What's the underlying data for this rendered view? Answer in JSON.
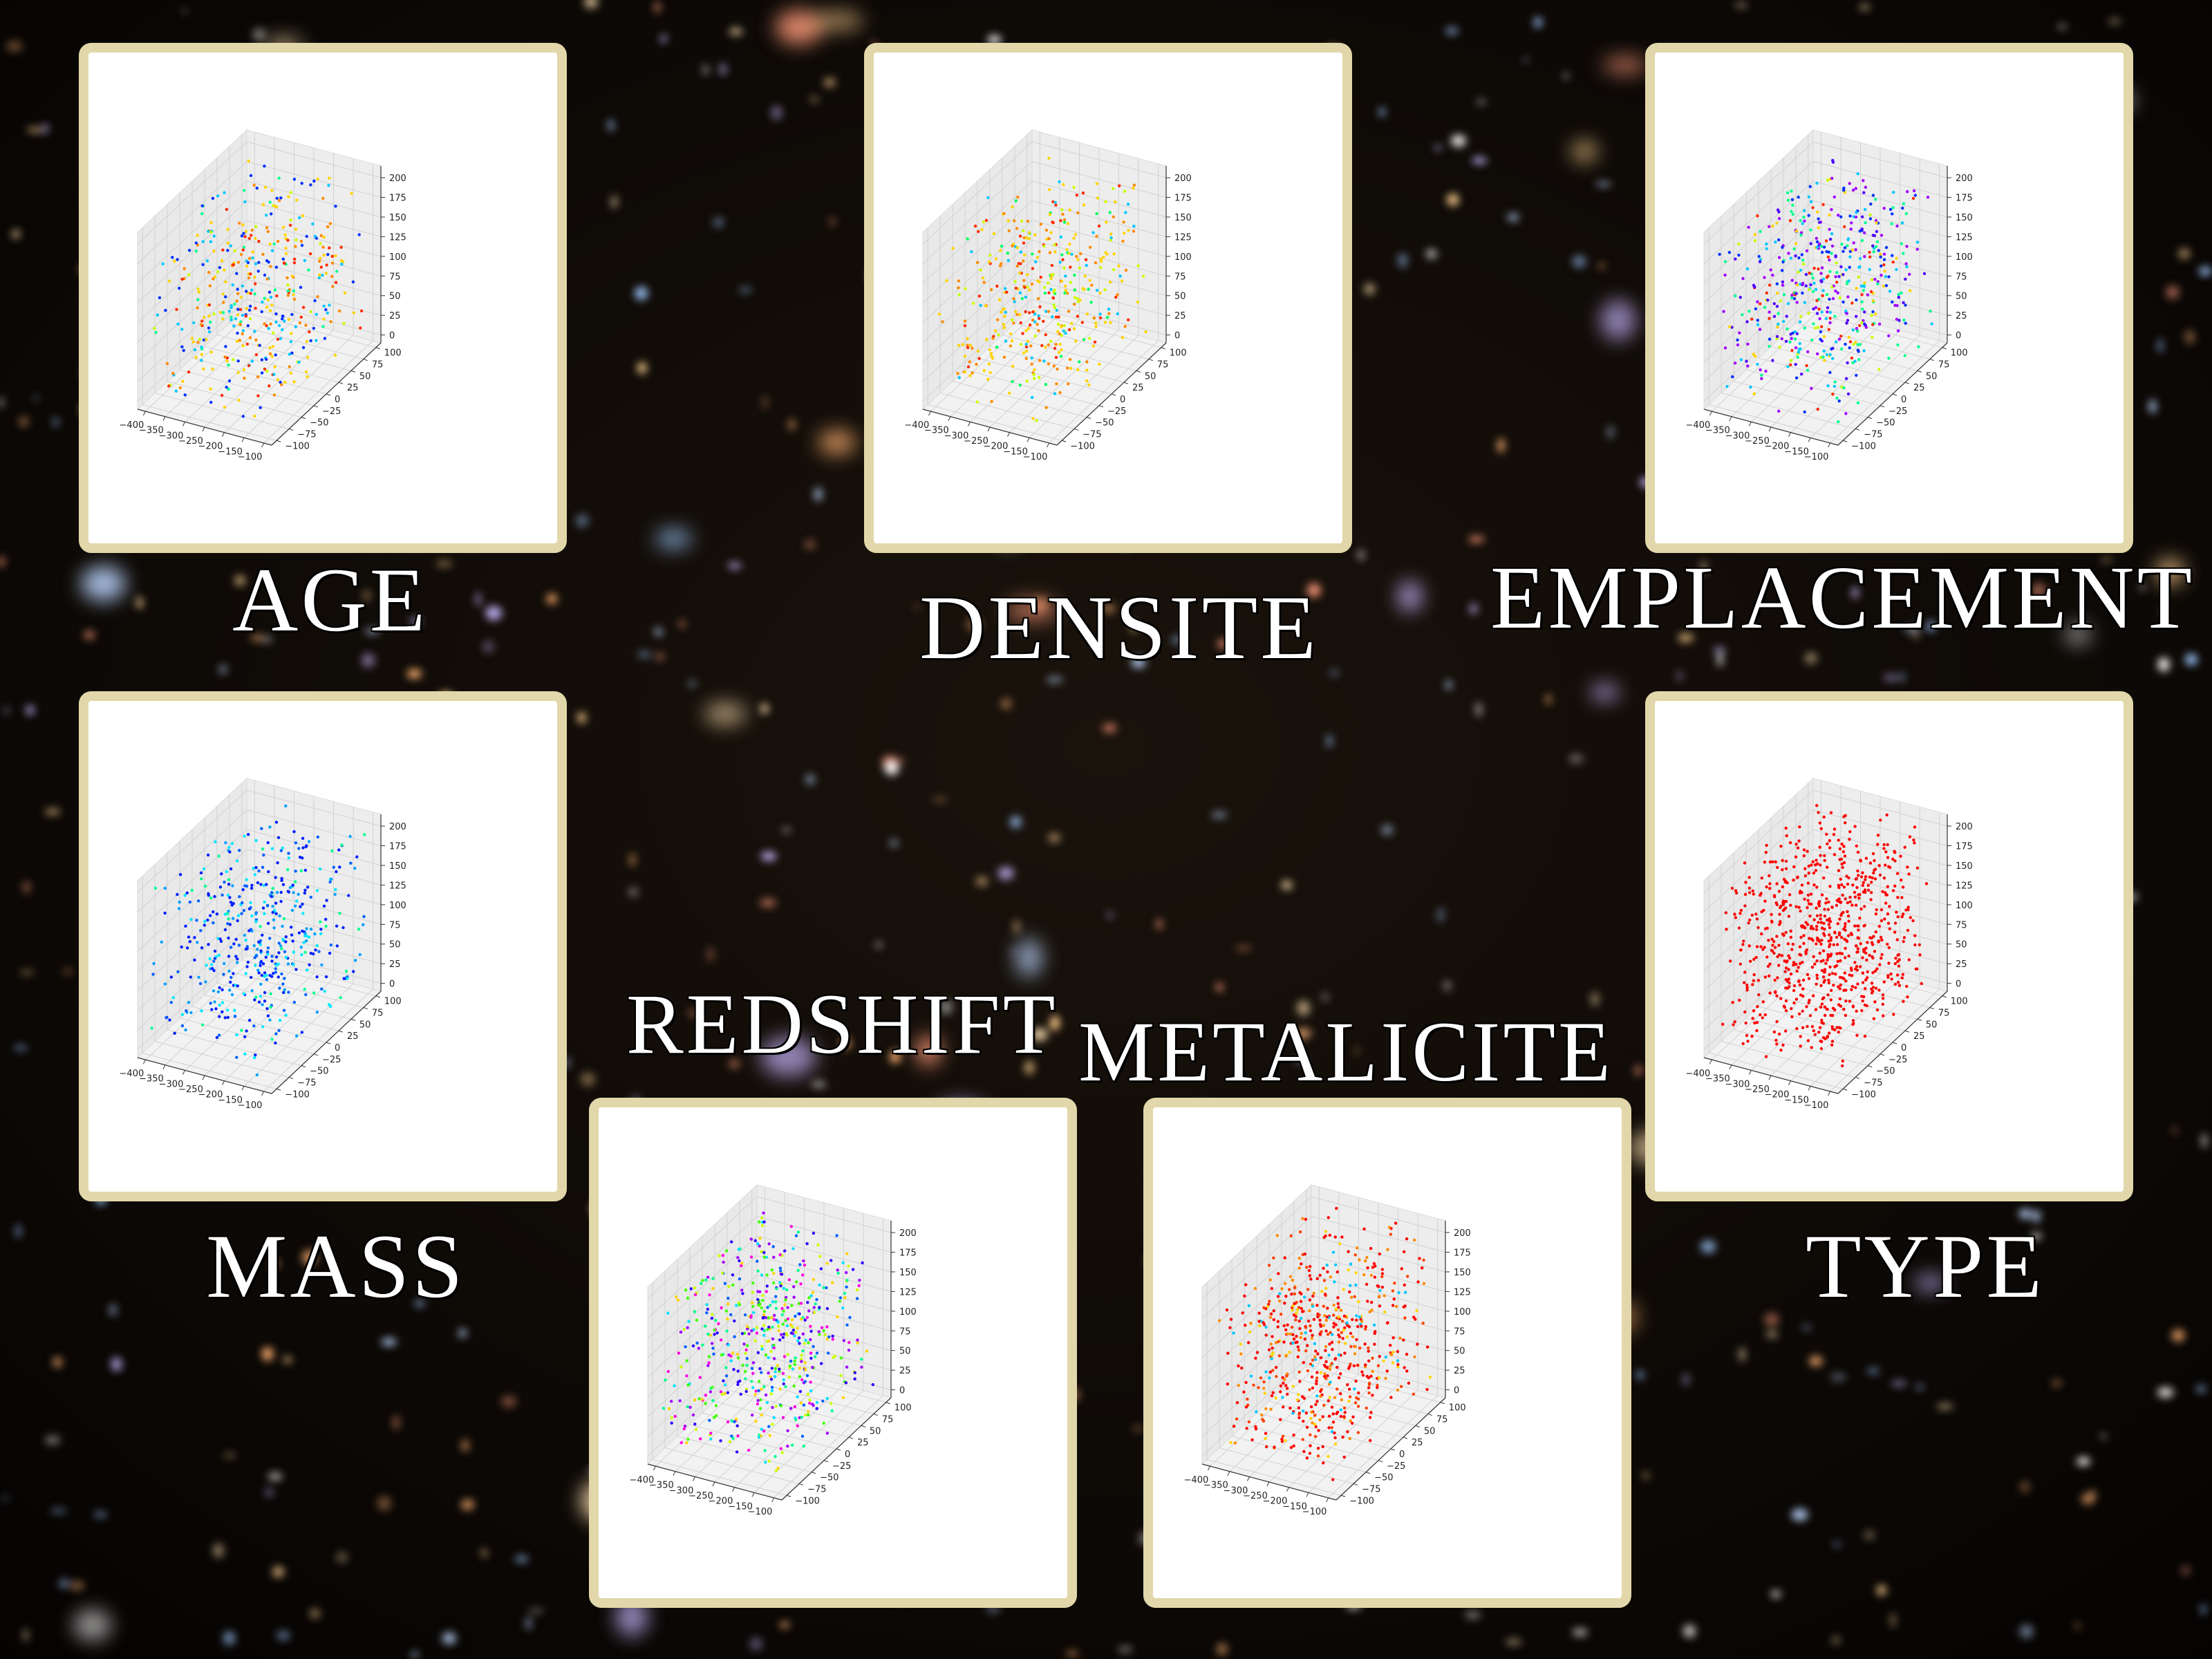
{
  "panels": [
    {
      "id": "age",
      "label": "AGE",
      "colors": [
        "#ffd400",
        "#ff8a00",
        "#ff2a00",
        "#0030ff",
        "#00c8ff",
        "#00ff90",
        "#c8ff00"
      ],
      "weights": [
        3,
        2,
        2,
        2,
        2,
        1,
        1
      ],
      "n": 420,
      "xticks": [
        "−400",
        "−350",
        "−300",
        "−250",
        "−200",
        "−150",
        "−100"
      ],
      "yticks": [
        "−100",
        "−75",
        "−50",
        "−25",
        "0",
        "25",
        "50",
        "75",
        "100"
      ],
      "zticks": [
        "0",
        "25",
        "50",
        "75",
        "100",
        "125",
        "150",
        "175",
        "200"
      ]
    },
    {
      "id": "densite",
      "label": "DENSITE",
      "colors": [
        "#ffd400",
        "#ff8a00",
        "#ff2a00",
        "#c8ff00",
        "#00ff60",
        "#00c8ff"
      ],
      "weights": [
        4,
        2,
        2,
        2,
        1,
        1
      ],
      "n": 420,
      "xticks": [
        "−400",
        "−350",
        "−300",
        "−250",
        "−200",
        "−150",
        "−100"
      ],
      "yticks": [
        "−100",
        "−75",
        "−50",
        "−25",
        "0",
        "25",
        "50",
        "75",
        "100"
      ],
      "zticks": [
        "0",
        "25",
        "50",
        "75",
        "100",
        "125",
        "150",
        "175",
        "200"
      ]
    },
    {
      "id": "emplacement",
      "label": "EMPLACEMENT",
      "colors": [
        "#a000ff",
        "#5000ff",
        "#0030ff",
        "#00c8ff",
        "#00ff90",
        "#c8ff00",
        "#ffd400",
        "#ff2a00"
      ],
      "weights": [
        3,
        2,
        2,
        2,
        2,
        1,
        1,
        1
      ],
      "n": 520,
      "xticks": [
        "−400",
        "−350",
        "−300",
        "−250",
        "−200",
        "−150",
        "−100"
      ],
      "yticks": [
        "−100",
        "−75",
        "−50",
        "−25",
        "0",
        "25",
        "50",
        "75",
        "100"
      ],
      "zticks": [
        "0",
        "25",
        "50",
        "75",
        "100",
        "125",
        "150",
        "175",
        "200"
      ]
    },
    {
      "id": "mass",
      "label": "MASS",
      "colors": [
        "#0020ff",
        "#0060ff",
        "#00a0ff",
        "#00e8ff",
        "#00ff90"
      ],
      "weights": [
        4,
        2,
        2,
        2,
        1
      ],
      "n": 460,
      "xticks": [
        "−400",
        "−350",
        "−300",
        "−250",
        "−200",
        "−150",
        "−100"
      ],
      "yticks": [
        "−100",
        "−75",
        "−50",
        "−25",
        "0",
        "25",
        "50",
        "75",
        "100"
      ],
      "zticks": [
        "0",
        "25",
        "50",
        "75",
        "100",
        "125",
        "150",
        "175",
        "200"
      ]
    },
    {
      "id": "type",
      "label": "TYPE",
      "colors": [
        "#ff0000",
        "#ee1010"
      ],
      "weights": [
        5,
        1
      ],
      "n": 760,
      "xticks": [
        "−400",
        "−350",
        "−300",
        "−250",
        "−200",
        "−150",
        "−100"
      ],
      "yticks": [
        "−100",
        "−75",
        "−50",
        "−25",
        "0",
        "25",
        "50",
        "75",
        "100"
      ],
      "zticks": [
        "0",
        "25",
        "50",
        "75",
        "100",
        "125",
        "150",
        "175",
        "200"
      ]
    },
    {
      "id": "redshift",
      "label": "REDSHIFT",
      "colors": [
        "#ffd400",
        "#c8ff00",
        "#40ff00",
        "#00ff90",
        "#00e0ff",
        "#0060ff",
        "#3000ff",
        "#a000ff",
        "#ff00e0"
      ],
      "weights": [
        2,
        2,
        2,
        2,
        2,
        2,
        2,
        2,
        2
      ],
      "n": 560,
      "xticks": [
        "−400",
        "−350",
        "−300",
        "−250",
        "−200",
        "−150",
        "−100"
      ],
      "yticks": [
        "−100",
        "−75",
        "−50",
        "−25",
        "0",
        "25",
        "50",
        "75",
        "100"
      ],
      "zticks": [
        "0",
        "25",
        "50",
        "75",
        "100",
        "125",
        "150",
        "175",
        "200"
      ]
    },
    {
      "id": "metalicite",
      "label": "METALICITE",
      "colors": [
        "#ff0000",
        "#ff4000",
        "#ff8a00",
        "#ffd400",
        "#00c8ff"
      ],
      "weights": [
        6,
        2,
        2,
        1,
        1
      ],
      "n": 600,
      "xticks": [
        "−400",
        "−350",
        "−300",
        "−250",
        "−200",
        "−150",
        "−100"
      ],
      "yticks": [
        "−100",
        "−75",
        "−50",
        "−25",
        "0",
        "25",
        "50",
        "75",
        "100"
      ],
      "zticks": [
        "0",
        "25",
        "50",
        "75",
        "100",
        "125",
        "150",
        "175",
        "200"
      ]
    }
  ],
  "chart_data": [
    {
      "type": "scatter",
      "title": "AGE",
      "projection": "3d",
      "xlim": [
        -420,
        -80
      ],
      "ylim": [
        -110,
        110
      ],
      "zlim": [
        -10,
        215
      ],
      "grid": true
    },
    {
      "type": "scatter",
      "title": "DENSITE",
      "projection": "3d",
      "xlim": [
        -420,
        -80
      ],
      "ylim": [
        -110,
        110
      ],
      "zlim": [
        -10,
        215
      ],
      "grid": true
    },
    {
      "type": "scatter",
      "title": "EMPLACEMENT",
      "projection": "3d",
      "xlim": [
        -420,
        -80
      ],
      "ylim": [
        -110,
        110
      ],
      "zlim": [
        -10,
        215
      ],
      "grid": true
    },
    {
      "type": "scatter",
      "title": "MASS",
      "projection": "3d",
      "xlim": [
        -420,
        -80
      ],
      "ylim": [
        -110,
        110
      ],
      "zlim": [
        -10,
        215
      ],
      "grid": true
    },
    {
      "type": "scatter",
      "title": "TYPE",
      "projection": "3d",
      "xlim": [
        -420,
        -80
      ],
      "ylim": [
        -110,
        110
      ],
      "zlim": [
        -10,
        215
      ],
      "grid": true
    },
    {
      "type": "scatter",
      "title": "REDSHIFT",
      "projection": "3d",
      "xlim": [
        -420,
        -80
      ],
      "ylim": [
        -110,
        110
      ],
      "zlim": [
        -10,
        215
      ],
      "grid": true
    },
    {
      "type": "scatter",
      "title": "METALICITE",
      "projection": "3d",
      "xlim": [
        -420,
        -80
      ],
      "ylim": [
        -110,
        110
      ],
      "zlim": [
        -10,
        215
      ],
      "grid": true
    }
  ]
}
